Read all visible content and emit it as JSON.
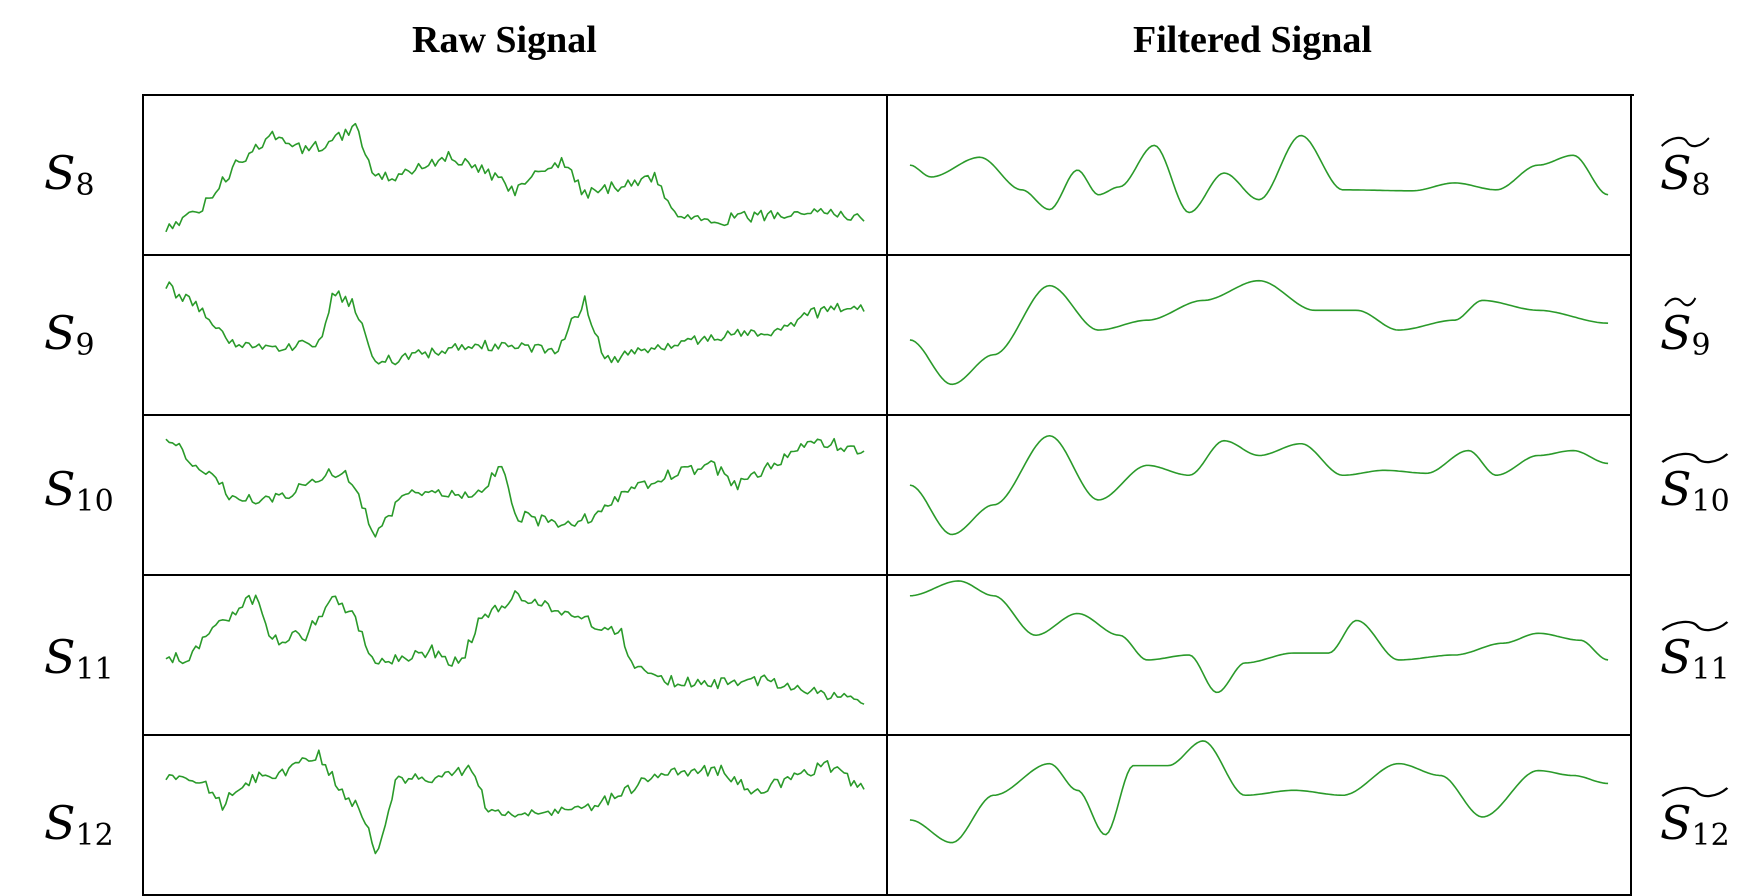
{
  "headers": {
    "raw": "Raw Signal",
    "filtered": "Filtered Signal"
  },
  "rows": [
    {
      "raw_label": "S",
      "raw_sub": "8",
      "filt_label": "S",
      "filt_sub": "8"
    },
    {
      "raw_label": "S",
      "raw_sub": "9",
      "filt_label": "S",
      "filt_sub": "9"
    },
    {
      "raw_label": "S",
      "raw_sub": "10",
      "filt_label": "S",
      "filt_sub": "10"
    },
    {
      "raw_label": "S",
      "raw_sub": "11",
      "filt_label": "S",
      "filt_sub": "11"
    },
    {
      "raw_label": "S",
      "raw_sub": "12",
      "filt_label": "S",
      "filt_sub": "12"
    }
  ],
  "colors": {
    "signal": "#2a9a2a",
    "grid": "#000000"
  }
}
